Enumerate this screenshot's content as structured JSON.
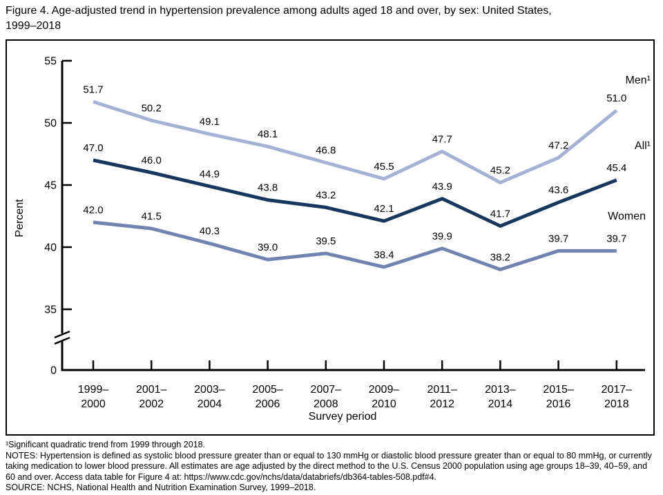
{
  "figure": {
    "title_line1": "Figure 4. Age-adjusted trend in hypertension prevalence among adults aged 18 and over, by sex: United States,",
    "title_line2": "1999–2018"
  },
  "chart_data": {
    "type": "line",
    "title": "Figure 4. Age-adjusted trend in hypertension prevalence among adults aged 18 and over, by sex: United States, 1999–2018",
    "xlabel": "Survey period",
    "ylabel": "Percent",
    "categories": [
      "1999–2000",
      "2001–2002",
      "2003–2004",
      "2005–2006",
      "2007–2008",
      "2009–2010",
      "2011–2012",
      "2013–2014",
      "2015–2016",
      "2017–2018"
    ],
    "yticks": [
      55,
      50,
      45,
      40,
      35
    ],
    "y_zero_label": "0",
    "y_axis_break": true,
    "ylim": [
      0,
      55
    ],
    "ylim_display": [
      35,
      55
    ],
    "grid": false,
    "legend_position": "right-inline",
    "series": [
      {
        "name": "Men",
        "label": "Men¹",
        "color": "#a6b2d4",
        "values": [
          51.7,
          50.2,
          49.1,
          48.1,
          46.8,
          45.5,
          47.7,
          45.2,
          47.2,
          51.0
        ]
      },
      {
        "name": "All",
        "label": "All¹",
        "color": "#17375e",
        "values": [
          47.0,
          46.0,
          44.9,
          43.8,
          43.2,
          42.1,
          43.9,
          41.7,
          43.6,
          45.4
        ]
      },
      {
        "name": "Women",
        "label": "Women",
        "color": "#7183b0",
        "values": [
          42.0,
          41.5,
          40.3,
          39.0,
          39.5,
          38.4,
          39.9,
          38.2,
          39.7,
          39.7
        ]
      }
    ]
  },
  "footnotes": {
    "footnote1": "¹Significant quadratic trend from 1999 through 2018.",
    "notes": "NOTES: Hypertension is defined as systolic blood pressure greater than or equal to 130 mmHg or diastolic blood pressure greater than or equal to 80 mmHg, or currently taking medication to lower blood pressure. All estimates are age adjusted by the direct method to the U.S. Census 2000 population using age groups 18–39, 40–59, and 60 and over. Access data table for Figure 4 at: https://www.cdc.gov/nchs/data/databriefs/db364-tables-508.pdf#4.",
    "source": "SOURCE: NCHS, National Health and Nutrition Examination Survey, 1999–2018."
  }
}
